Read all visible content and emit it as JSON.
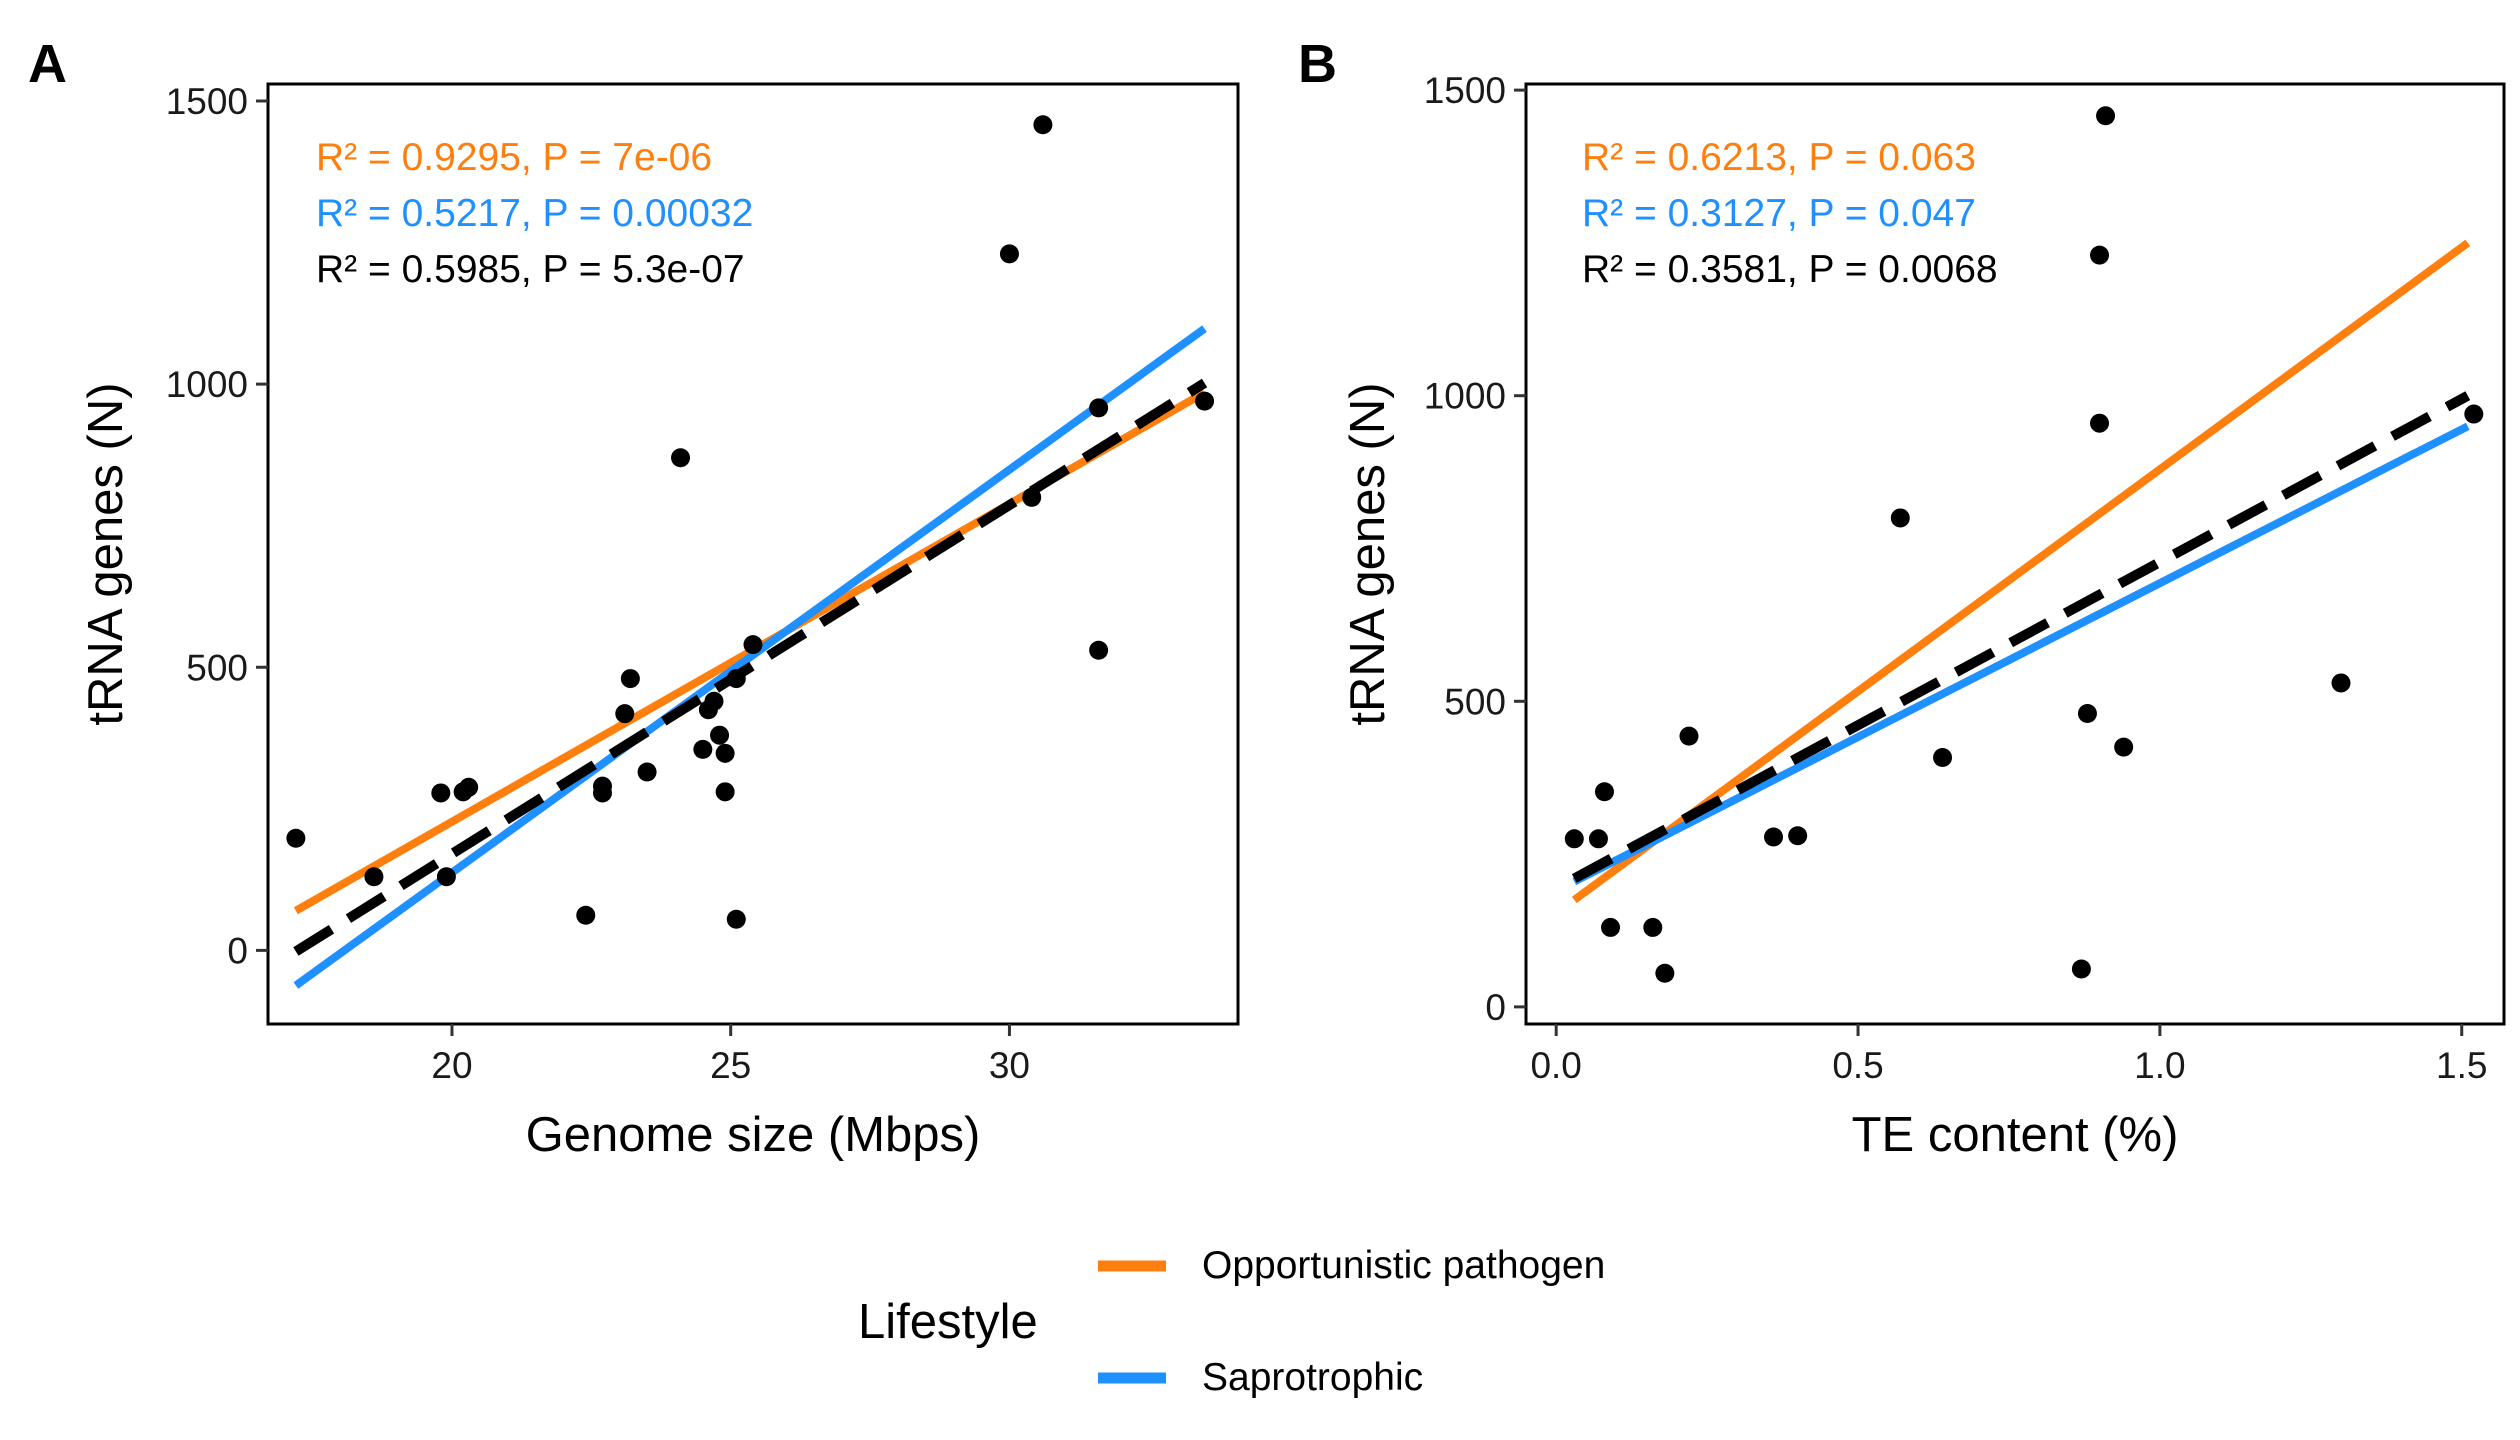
{
  "colors": {
    "opportunistic": "#FF7F0E",
    "saprotrophic": "#1E90FF",
    "overall": "#000000",
    "points": "#000000"
  },
  "legend": {
    "title": "Lifestyle",
    "position": "bottom",
    "entries": [
      {
        "label": "Opportunistic pathogen",
        "color": "#FF7F0E"
      },
      {
        "label": "Saprotrophic",
        "color": "#1E90FF"
      }
    ]
  },
  "chart_data": [
    {
      "type": "scatter",
      "panel": "A",
      "xlabel": "Genome size (Mbps)",
      "ylabel": "tRNA genes (N)",
      "xlim": [
        16.7,
        34.1
      ],
      "ylim": [
        -130,
        1530
      ],
      "xticks": [
        20,
        25,
        30
      ],
      "yticks": [
        0,
        500,
        1000,
        1500
      ],
      "grid": false,
      "points": [
        {
          "x": 17.2,
          "y": 198
        },
        {
          "x": 18.6,
          "y": 130
        },
        {
          "x": 19.8,
          "y": 278
        },
        {
          "x": 19.9,
          "y": 130
        },
        {
          "x": 20.2,
          "y": 280
        },
        {
          "x": 20.3,
          "y": 288
        },
        {
          "x": 22.4,
          "y": 62
        },
        {
          "x": 22.7,
          "y": 290
        },
        {
          "x": 22.7,
          "y": 278
        },
        {
          "x": 23.1,
          "y": 418
        },
        {
          "x": 23.2,
          "y": 480
        },
        {
          "x": 23.5,
          "y": 315
        },
        {
          "x": 24.1,
          "y": 870
        },
        {
          "x": 24.5,
          "y": 355
        },
        {
          "x": 24.6,
          "y": 425
        },
        {
          "x": 24.7,
          "y": 440
        },
        {
          "x": 24.8,
          "y": 380
        },
        {
          "x": 24.9,
          "y": 348
        },
        {
          "x": 24.9,
          "y": 280
        },
        {
          "x": 25.1,
          "y": 480
        },
        {
          "x": 25.1,
          "y": 55
        },
        {
          "x": 25.4,
          "y": 540
        },
        {
          "x": 30.0,
          "y": 1230
        },
        {
          "x": 30.4,
          "y": 800
        },
        {
          "x": 30.6,
          "y": 1458
        },
        {
          "x": 31.6,
          "y": 958
        },
        {
          "x": 31.6,
          "y": 530
        },
        {
          "x": 33.5,
          "y": 970
        }
      ],
      "series": [
        {
          "name": "Opportunistic pathogen",
          "key": "opportunistic",
          "x": [
            17.2,
            33.5
          ],
          "y": [
            70,
            985
          ]
        },
        {
          "name": "Saprotrophic",
          "key": "saprotrophic",
          "x": [
            17.2,
            33.5
          ],
          "y": [
            -62,
            1098
          ]
        },
        {
          "name": "",
          "key": "overall",
          "x": [
            17.2,
            33.5
          ],
          "y": [
            -2,
            1002
          ]
        }
      ],
      "annotations": [
        {
          "text": "R² = 0.9295, P = 7e-06",
          "color": "#FF7F0E"
        },
        {
          "text": "R² = 0.5217, P = 0.00032",
          "color": "#1E90FF"
        },
        {
          "text": "R² = 0.5985, P = 5.3e-07",
          "color": "#000000"
        }
      ]
    },
    {
      "type": "scatter",
      "panel": "B",
      "xlabel": "TE content (%)",
      "ylabel": "tRNA genes (N)",
      "xlim": [
        -0.05,
        1.57
      ],
      "ylim": [
        -28,
        1510
      ],
      "xticks": [
        0.0,
        0.5,
        1.0,
        1.5
      ],
      "xticklabels": [
        "0.0",
        "0.5",
        "1.0",
        "1.5"
      ],
      "yticks": [
        0,
        500,
        1000,
        1500
      ],
      "grid": false,
      "points": [
        {
          "x": 0.03,
          "y": 275
        },
        {
          "x": 0.07,
          "y": 275
        },
        {
          "x": 0.08,
          "y": 352
        },
        {
          "x": 0.09,
          "y": 130
        },
        {
          "x": 0.16,
          "y": 130
        },
        {
          "x": 0.18,
          "y": 55
        },
        {
          "x": 0.22,
          "y": 443
        },
        {
          "x": 0.36,
          "y": 278
        },
        {
          "x": 0.4,
          "y": 280
        },
        {
          "x": 0.57,
          "y": 800
        },
        {
          "x": 0.64,
          "y": 408
        },
        {
          "x": 0.87,
          "y": 62
        },
        {
          "x": 0.88,
          "y": 480
        },
        {
          "x": 0.9,
          "y": 955
        },
        {
          "x": 0.9,
          "y": 1230
        },
        {
          "x": 0.91,
          "y": 1458
        },
        {
          "x": 0.94,
          "y": 425
        },
        {
          "x": 1.3,
          "y": 530
        },
        {
          "x": 1.52,
          "y": 970
        }
      ],
      "series": [
        {
          "name": "Opportunistic pathogen",
          "key": "opportunistic",
          "x": [
            0.03,
            1.51
          ],
          "y": [
            175,
            1250
          ]
        },
        {
          "name": "Saprotrophic",
          "key": "saprotrophic",
          "x": [
            0.03,
            1.51
          ],
          "y": [
            205,
            950
          ]
        },
        {
          "name": "",
          "key": "overall",
          "x": [
            0.03,
            1.51
          ],
          "y": [
            210,
            1000
          ]
        }
      ],
      "annotations": [
        {
          "text": "R² = 0.6213, P = 0.063",
          "color": "#FF7F0E"
        },
        {
          "text": "R² = 0.3127, P = 0.047",
          "color": "#1E90FF"
        },
        {
          "text": "R² = 0.3581, P = 0.0068",
          "color": "#000000"
        }
      ]
    }
  ]
}
